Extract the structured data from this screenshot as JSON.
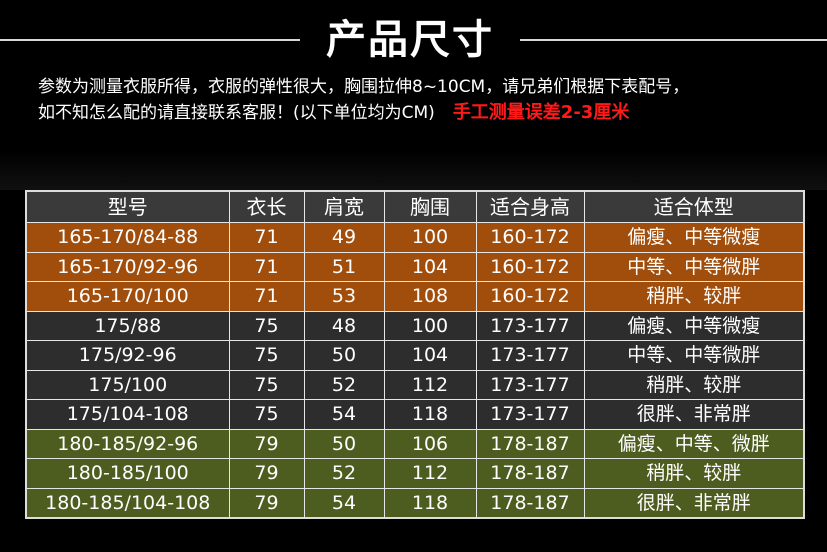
{
  "title": "产品尺寸",
  "description": {
    "line1": "参数为测量衣服所得，衣服的弹性很大，胸围拉伸8~10CM，请兄弟们根据下表配号，",
    "line2": "如不知怎么配的请直接联系客服！(以下单位均为CM)",
    "warning": "手工测量误差2-3厘米"
  },
  "colors": {
    "orange_row": "#a14e0c",
    "dark_row": "#2d2d2d",
    "green_row": "#4d5d1f",
    "header_row": "#3a3a3a",
    "warning_text": "#ff1a1a"
  },
  "table": {
    "headers": [
      "型号",
      "衣长",
      "肩宽",
      "胸围",
      "适合身高",
      "适合体型"
    ],
    "rows": [
      {
        "group": "orange",
        "cells": [
          "165-170/84-88",
          "71",
          "49",
          "100",
          "160-172",
          "偏瘦、中等微瘦"
        ]
      },
      {
        "group": "orange",
        "cells": [
          "165-170/92-96",
          "71",
          "51",
          "104",
          "160-172",
          "中等、中等微胖"
        ]
      },
      {
        "group": "orange",
        "cells": [
          "165-170/100",
          "71",
          "53",
          "108",
          "160-172",
          "稍胖、较胖"
        ]
      },
      {
        "group": "dark",
        "cells": [
          "175/88",
          "75",
          "48",
          "100",
          "173-177",
          "偏瘦、中等微瘦"
        ]
      },
      {
        "group": "dark",
        "cells": [
          "175/92-96",
          "75",
          "50",
          "104",
          "173-177",
          "中等、中等微胖"
        ]
      },
      {
        "group": "dark",
        "cells": [
          "175/100",
          "75",
          "52",
          "112",
          "173-177",
          "稍胖、较胖"
        ]
      },
      {
        "group": "dark",
        "cells": [
          "175/104-108",
          "75",
          "54",
          "118",
          "173-177",
          "很胖、非常胖"
        ]
      },
      {
        "group": "green",
        "cells": [
          "180-185/92-96",
          "79",
          "50",
          "106",
          "178-187",
          "偏瘦、中等、微胖"
        ]
      },
      {
        "group": "green",
        "cells": [
          "180-185/100",
          "79",
          "52",
          "112",
          "178-187",
          "稍胖、较胖"
        ]
      },
      {
        "group": "green",
        "cells": [
          "180-185/104-108",
          "79",
          "54",
          "118",
          "178-187",
          "很胖、非常胖"
        ]
      }
    ]
  }
}
